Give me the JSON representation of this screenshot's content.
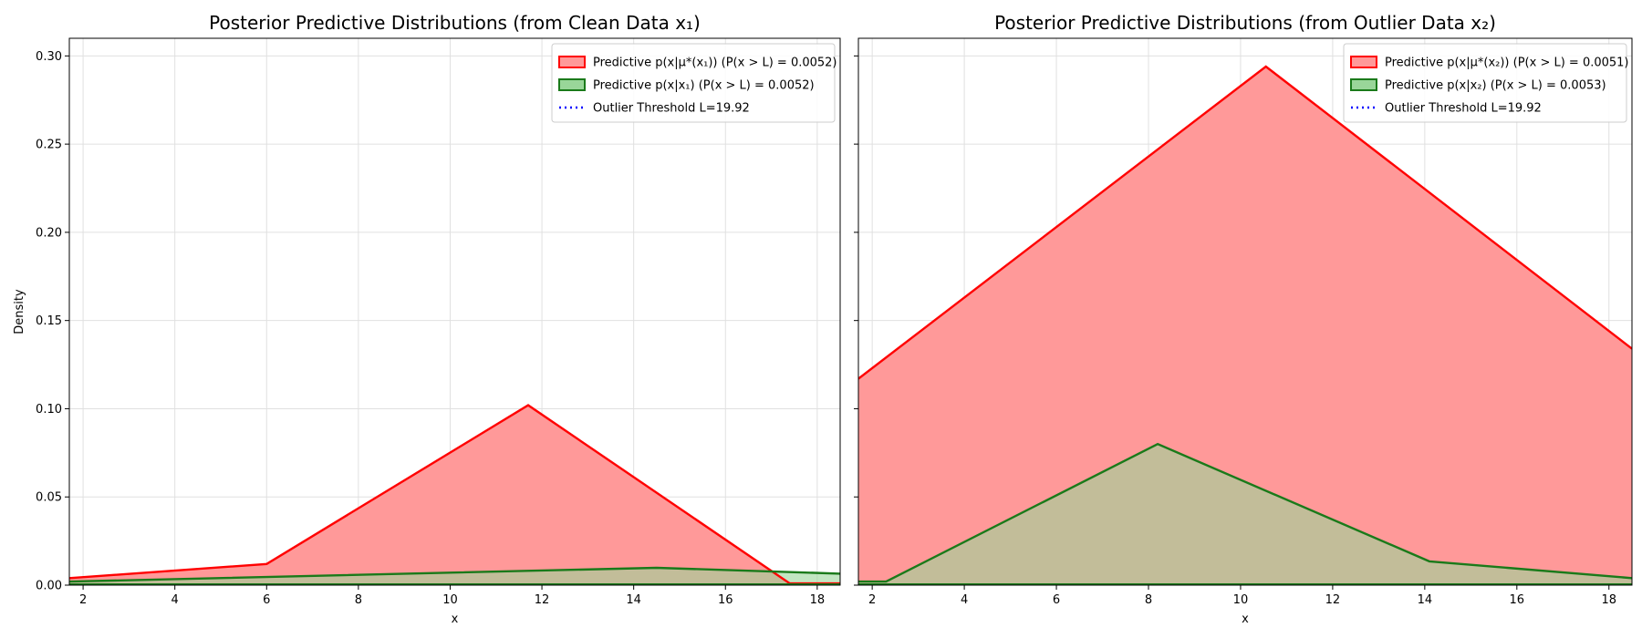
{
  "chart_data": [
    {
      "type": "area",
      "title": "Posterior Predictive Distributions (from Clean Data x₁)",
      "xlabel": "x",
      "ylabel": "Density",
      "xlim": [
        1.7,
        18.5
      ],
      "ylim": [
        0,
        0.31
      ],
      "xticks": [
        2,
        4,
        6,
        8,
        10,
        12,
        14,
        16,
        18
      ],
      "yticks": [
        0.0,
        0.05,
        0.1,
        0.15,
        0.2,
        0.25,
        0.3
      ],
      "grid": true,
      "legend_position": "top-right",
      "threshold": 19.92,
      "series": [
        {
          "name": "Predictive p(x|μ*(x₁)) (P(x > L) = 0.0052)",
          "color": "#ff0000",
          "fill": "#ff9999",
          "x": [
            1.7,
            6.0,
            11.7,
            17.4,
            18.5
          ],
          "y": [
            0.004,
            0.012,
            0.102,
            0.001,
            0.001
          ]
        },
        {
          "name": "Predictive p(x|x₁) (P(x > L) = 0.0052)",
          "color": "#1a7a1a",
          "fill": "#99d699",
          "x": [
            1.7,
            14.5,
            18.5
          ],
          "y": [
            0.002,
            0.0098,
            0.0065
          ]
        }
      ],
      "threshold_label": "Outlier Threshold L=19.92"
    },
    {
      "type": "area",
      "title": "Posterior Predictive Distributions (from Outlier Data x₂)",
      "xlabel": "x",
      "ylabel": "",
      "xlim": [
        1.7,
        18.5
      ],
      "ylim": [
        0,
        0.31
      ],
      "xticks": [
        2,
        4,
        6,
        8,
        10,
        12,
        14,
        16,
        18
      ],
      "yticks": [
        0.0,
        0.05,
        0.1,
        0.15,
        0.2,
        0.25,
        0.3
      ],
      "grid": true,
      "legend_position": "top-right",
      "threshold": 19.92,
      "series": [
        {
          "name": "Predictive p(x|μ*(x₂)) (P(x > L) = 0.0051)",
          "color": "#ff0000",
          "fill": "#ff9999",
          "x": [
            1.7,
            10.55,
            18.5
          ],
          "y": [
            0.117,
            0.294,
            0.134
          ]
        },
        {
          "name": "Predictive p(x|x₂) (P(x > L) = 0.0053)",
          "color": "#1a7a1a",
          "fill": "#99d699",
          "x": [
            1.7,
            2.3,
            8.2,
            14.1,
            18.5
          ],
          "y": [
            0.002,
            0.002,
            0.08,
            0.0135,
            0.004
          ]
        }
      ],
      "threshold_label": "Outlier Threshold L=19.92"
    }
  ]
}
